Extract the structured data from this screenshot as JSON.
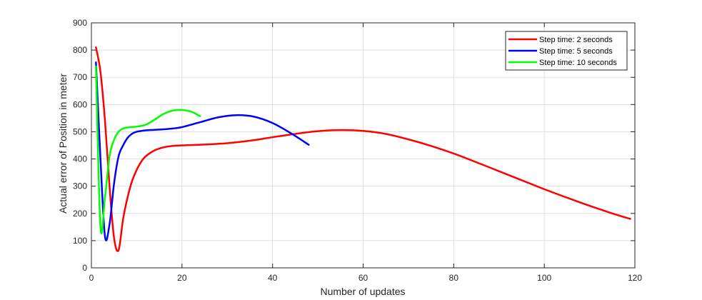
{
  "chart_data": {
    "type": "line",
    "title": "",
    "xlabel": "Number of updates",
    "ylabel": "Actual error of Position in meter",
    "xlim": [
      0,
      120
    ],
    "ylim": [
      0,
      900
    ],
    "xticks": [
      0,
      20,
      40,
      60,
      80,
      100,
      120
    ],
    "yticks": [
      0,
      100,
      200,
      300,
      400,
      500,
      600,
      700,
      800,
      900
    ],
    "grid": true,
    "legend_position": "top-right",
    "series": [
      {
        "name": "Step time: 2 seconds",
        "color": "#ff0000",
        "x": [
          1,
          2,
          3,
          4,
          5,
          6,
          7,
          8,
          9,
          10,
          11,
          12,
          14,
          16,
          18,
          20,
          25,
          30,
          35,
          40,
          45,
          50,
          55,
          60,
          65,
          70,
          75,
          80,
          85,
          90,
          95,
          100,
          105,
          110,
          115,
          119
        ],
        "y": [
          810,
          720,
          540,
          300,
          110,
          65,
          180,
          260,
          320,
          360,
          390,
          410,
          432,
          443,
          448,
          450,
          453,
          458,
          467,
          480,
          492,
          502,
          506,
          503,
          492,
          472,
          448,
          420,
          388,
          355,
          322,
          289,
          258,
          228,
          200,
          180
        ]
      },
      {
        "name": "Step time: 5 seconds",
        "color": "#0000ff",
        "x": [
          1,
          2,
          3,
          4,
          5,
          6,
          7,
          8,
          9,
          10,
          11,
          12,
          14,
          16,
          18,
          20,
          24,
          28,
          32,
          36,
          40,
          44,
          48
        ],
        "y": [
          755,
          400,
          115,
          160,
          310,
          410,
          450,
          478,
          493,
          500,
          503,
          505,
          507,
          509,
          512,
          517,
          535,
          553,
          561,
          555,
          532,
          495,
          452
        ]
      },
      {
        "name": "Step time: 10 seconds",
        "color": "#00ff00",
        "x": [
          1,
          2,
          3,
          4,
          5,
          6,
          7,
          8,
          10,
          12,
          14,
          16,
          18,
          20,
          22,
          24
        ],
        "y": [
          740,
          150,
          260,
          410,
          470,
          500,
          512,
          516,
          519,
          526,
          545,
          566,
          578,
          580,
          574,
          557
        ]
      }
    ]
  }
}
